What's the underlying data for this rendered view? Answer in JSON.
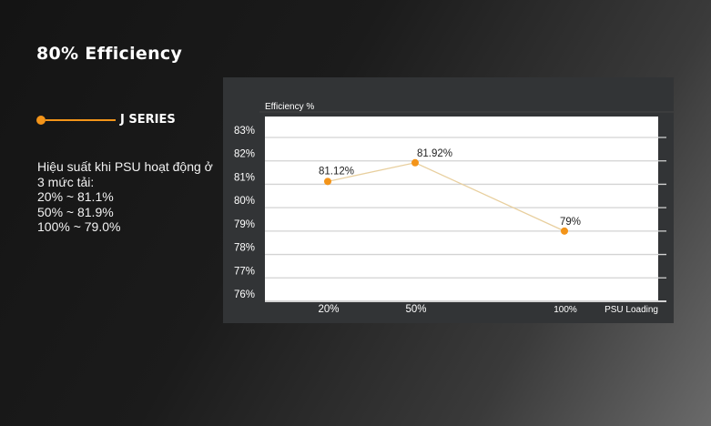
{
  "title": "80% Efficiency",
  "legend": {
    "label": "J SERIES",
    "color": "#f39419"
  },
  "description": [
    "Hiệu suất khi PSU hoạt động ở",
    "3 mức tải:",
    "20% ~ 81.1%",
    "50% ~ 81.9%",
    "100% ~ 79.0%"
  ],
  "chart_data": {
    "type": "line",
    "ylabel": "Efficiency %",
    "xlabel": "PSU Loading",
    "categories": [
      "20%",
      "50%",
      "100%"
    ],
    "x": [
      20,
      50,
      100
    ],
    "series": [
      {
        "name": "J SERIES",
        "values": [
          81.12,
          81.92,
          79
        ],
        "labels": [
          "81.12%",
          "81.92%",
          "79%"
        ],
        "color": "#f39419",
        "line_color": "#e8cf9e"
      }
    ],
    "ylim": [
      76,
      83
    ],
    "yticks": [
      "76%",
      "77%",
      "78%",
      "79%",
      "80%",
      "81%",
      "82%",
      "83%"
    ],
    "grid": true,
    "legend_position": "left"
  }
}
